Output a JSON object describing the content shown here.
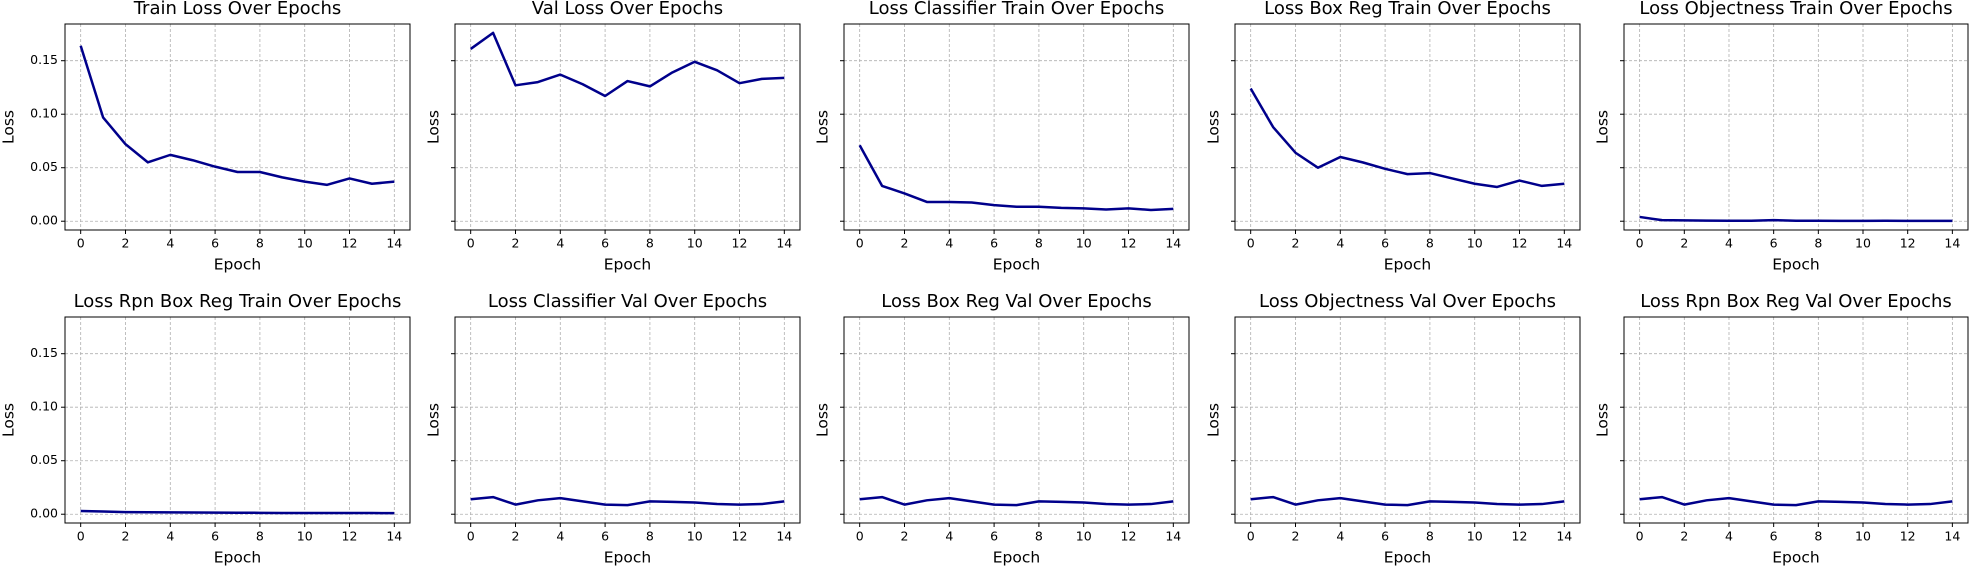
{
  "chart_data": [
    {
      "type": "line",
      "title": "Train Loss Over Epochs",
      "xlabel": "Epoch",
      "ylabel": "Loss",
      "x": [
        0,
        1,
        2,
        3,
        4,
        5,
        6,
        7,
        8,
        9,
        10,
        11,
        12,
        13,
        14
      ],
      "values": [
        0.164,
        0.097,
        0.072,
        0.055,
        0.062,
        0.057,
        0.051,
        0.046,
        0.046,
        0.041,
        0.037,
        0.034,
        0.04,
        0.035,
        0.037
      ],
      "color": "#00008b",
      "xlim": [
        -0.7,
        14.7
      ],
      "xticks": [
        0,
        2,
        4,
        6,
        8,
        10,
        12,
        14
      ],
      "ylim": [
        -0.0082,
        0.1843
      ],
      "yticks": [
        {
          "value": 0,
          "label": "0.00"
        },
        {
          "value": 0.05,
          "label": "0.05"
        },
        {
          "value": 0.1,
          "label": "0.10"
        },
        {
          "value": 0.15,
          "label": "0.15"
        }
      ],
      "grid": true
    },
    {
      "type": "line",
      "title": "Val Loss Over Epochs",
      "xlabel": "Epoch",
      "ylabel": "Loss",
      "x": [
        0,
        1,
        2,
        3,
        4,
        5,
        6,
        7,
        8,
        9,
        10,
        11,
        12,
        13,
        14
      ],
      "values": [
        0.161,
        0.176,
        0.127,
        0.13,
        0.137,
        0.128,
        0.117,
        0.131,
        0.126,
        0.139,
        0.149,
        0.141,
        0.129,
        0.133,
        0.134
      ],
      "color": "#00008b",
      "xlim": [
        -0.7,
        14.7
      ],
      "xticks": [
        0,
        2,
        4,
        6,
        8,
        10,
        12,
        14
      ],
      "ylim": [
        -0.0082,
        0.1843
      ],
      "yticks": [
        0,
        0.05,
        0.1,
        0.15
      ],
      "grid": true
    },
    {
      "type": "line",
      "title": "Loss Classifier Train Over Epochs",
      "xlabel": "Epoch",
      "ylabel": "Loss",
      "x": [
        0,
        1,
        2,
        3,
        4,
        5,
        6,
        7,
        8,
        9,
        10,
        11,
        12,
        13,
        14
      ],
      "values": [
        0.071,
        0.033,
        0.026,
        0.018,
        0.018,
        0.0175,
        0.015,
        0.0135,
        0.0135,
        0.0125,
        0.012,
        0.011,
        0.012,
        0.0105,
        0.0115
      ],
      "color": "#00008b",
      "xlim": [
        -0.7,
        14.7
      ],
      "xticks": [
        0,
        2,
        4,
        6,
        8,
        10,
        12,
        14
      ],
      "ylim": [
        -0.0082,
        0.1843
      ],
      "yticks": [
        0,
        0.05,
        0.1,
        0.15
      ],
      "grid": true
    },
    {
      "type": "line",
      "title": "Loss Box Reg Train Over Epochs",
      "xlabel": "Epoch",
      "ylabel": "Loss",
      "x": [
        0,
        1,
        2,
        3,
        4,
        5,
        6,
        7,
        8,
        9,
        10,
        11,
        12,
        13,
        14
      ],
      "values": [
        0.124,
        0.088,
        0.064,
        0.05,
        0.06,
        0.055,
        0.049,
        0.044,
        0.045,
        0.04,
        0.035,
        0.032,
        0.038,
        0.033,
        0.035
      ],
      "color": "#00008b",
      "xlim": [
        -0.7,
        14.7
      ],
      "xticks": [
        0,
        2,
        4,
        6,
        8,
        10,
        12,
        14
      ],
      "ylim": [
        -0.0082,
        0.1843
      ],
      "yticks": [
        0,
        0.05,
        0.1,
        0.15
      ],
      "grid": true
    },
    {
      "type": "line",
      "title": "Loss Objectness Train Over Epochs",
      "xlabel": "Epoch",
      "ylabel": "Loss",
      "x": [
        0,
        1,
        2,
        3,
        4,
        5,
        6,
        7,
        8,
        9,
        10,
        11,
        12,
        13,
        14
      ],
      "values": [
        0.004,
        0.001,
        0.0008,
        0.0006,
        0.0005,
        0.0004,
        0.001,
        0.0004,
        0.0004,
        0.0003,
        0.0003,
        0.0004,
        0.0003,
        0.0003,
        0.0003
      ],
      "color": "#00008b",
      "xlim": [
        -0.7,
        14.7
      ],
      "xticks": [
        0,
        2,
        4,
        6,
        8,
        10,
        12,
        14
      ],
      "ylim": [
        -0.0082,
        0.1843
      ],
      "yticks": [
        0,
        0.05,
        0.1,
        0.15
      ],
      "grid": true
    },
    {
      "type": "line",
      "title": "Loss Rpn Box Reg Train Over Epochs",
      "xlabel": "Epoch",
      "ylabel": "Loss",
      "x": [
        0,
        1,
        2,
        3,
        4,
        5,
        6,
        7,
        8,
        9,
        10,
        11,
        12,
        13,
        14
      ],
      "values": [
        0.003,
        0.0025,
        0.002,
        0.0018,
        0.0017,
        0.0016,
        0.0015,
        0.0014,
        0.0013,
        0.0012,
        0.0012,
        0.0011,
        0.0011,
        0.0011,
        0.001
      ],
      "color": "#00008b",
      "xlim": [
        -0.7,
        14.7
      ],
      "xticks": [
        0,
        2,
        4,
        6,
        8,
        10,
        12,
        14
      ],
      "ylim": [
        -0.0082,
        0.1843
      ],
      "yticks": [
        {
          "value": 0,
          "label": "0.00"
        },
        {
          "value": 0.05,
          "label": "0.05"
        },
        {
          "value": 0.1,
          "label": "0.10"
        },
        {
          "value": 0.15,
          "label": "0.15"
        }
      ],
      "grid": true
    },
    {
      "type": "line",
      "title": "Loss Classifier Val Over Epochs",
      "xlabel": "Epoch",
      "ylabel": "Loss",
      "x": [
        0,
        1,
        2,
        3,
        4,
        5,
        6,
        7,
        8,
        9,
        10,
        11,
        12,
        13,
        14
      ],
      "values": [
        0.014,
        0.016,
        0.009,
        0.013,
        0.015,
        0.012,
        0.009,
        0.0085,
        0.012,
        0.0115,
        0.011,
        0.0095,
        0.009,
        0.0095,
        0.012
      ],
      "color": "#00008b",
      "xlim": [
        -0.7,
        14.7
      ],
      "xticks": [
        0,
        2,
        4,
        6,
        8,
        10,
        12,
        14
      ],
      "ylim": [
        -0.0082,
        0.1843
      ],
      "yticks": [
        0,
        0.05,
        0.1,
        0.15
      ],
      "grid": true
    },
    {
      "type": "line",
      "title": "Loss Box Reg Val Over Epochs",
      "xlabel": "Epoch",
      "ylabel": "Loss",
      "x": [
        0,
        1,
        2,
        3,
        4,
        5,
        6,
        7,
        8,
        9,
        10,
        11,
        12,
        13,
        14
      ],
      "values": [
        0.014,
        0.016,
        0.009,
        0.013,
        0.015,
        0.012,
        0.009,
        0.0085,
        0.012,
        0.0115,
        0.011,
        0.0095,
        0.009,
        0.0095,
        0.012
      ],
      "color": "#00008b",
      "xlim": [
        -0.7,
        14.7
      ],
      "xticks": [
        0,
        2,
        4,
        6,
        8,
        10,
        12,
        14
      ],
      "ylim": [
        -0.0082,
        0.1843
      ],
      "yticks": [
        0,
        0.05,
        0.1,
        0.15
      ],
      "grid": true
    },
    {
      "type": "line",
      "title": "Loss Objectness Val Over Epochs",
      "xlabel": "Epoch",
      "ylabel": "Loss",
      "x": [
        0,
        1,
        2,
        3,
        4,
        5,
        6,
        7,
        8,
        9,
        10,
        11,
        12,
        13,
        14
      ],
      "values": [
        0.014,
        0.016,
        0.009,
        0.013,
        0.015,
        0.012,
        0.009,
        0.0085,
        0.012,
        0.0115,
        0.011,
        0.0095,
        0.009,
        0.0095,
        0.012
      ],
      "color": "#00008b",
      "xlim": [
        -0.7,
        14.7
      ],
      "xticks": [
        0,
        2,
        4,
        6,
        8,
        10,
        12,
        14
      ],
      "ylim": [
        -0.0082,
        0.1843
      ],
      "yticks": [
        0,
        0.05,
        0.1,
        0.15
      ],
      "grid": true
    },
    {
      "type": "line",
      "title": "Loss Rpn Box Reg Val Over Epochs",
      "xlabel": "Epoch",
      "ylabel": "Loss",
      "x": [
        0,
        1,
        2,
        3,
        4,
        5,
        6,
        7,
        8,
        9,
        10,
        11,
        12,
        13,
        14
      ],
      "values": [
        0.014,
        0.016,
        0.009,
        0.013,
        0.015,
        0.012,
        0.009,
        0.0085,
        0.012,
        0.0115,
        0.011,
        0.0095,
        0.009,
        0.0095,
        0.012
      ],
      "color": "#00008b",
      "xlim": [
        -0.7,
        14.7
      ],
      "xticks": [
        0,
        2,
        4,
        6,
        8,
        10,
        12,
        14
      ],
      "ylim": [
        -0.0082,
        0.1843
      ],
      "yticks": [
        0,
        0.05,
        0.1,
        0.15
      ],
      "grid": true
    }
  ]
}
